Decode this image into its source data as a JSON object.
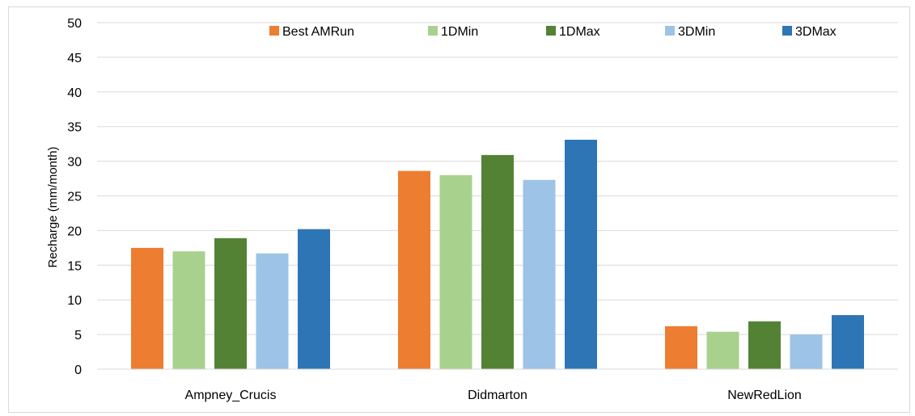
{
  "chart_data": {
    "type": "bar",
    "title": "",
    "xlabel": "",
    "ylabel": "Recharge (mm/month)",
    "ylim": [
      0,
      50
    ],
    "yticks": [
      0,
      5,
      10,
      15,
      20,
      25,
      30,
      35,
      40,
      45,
      50
    ],
    "grid": true,
    "legend_position": "top-right",
    "categories": [
      "Ampney_Crucis",
      "Didmarton",
      "NewRedLion"
    ],
    "series": [
      {
        "name": "Best AMRun",
        "color": "#ED7D31",
        "values": [
          17.5,
          28.6,
          6.2
        ]
      },
      {
        "name": "1DMin",
        "color": "#A9D18E",
        "values": [
          17.0,
          28.0,
          5.4
        ]
      },
      {
        "name": "1DMax",
        "color": "#548235",
        "values": [
          18.9,
          30.9,
          6.9
        ]
      },
      {
        "name": "3DMin",
        "color": "#9DC3E6",
        "values": [
          16.7,
          27.3,
          5.0
        ]
      },
      {
        "name": "3DMax",
        "color": "#2E75B6",
        "values": [
          20.2,
          33.1,
          7.8
        ]
      }
    ]
  }
}
